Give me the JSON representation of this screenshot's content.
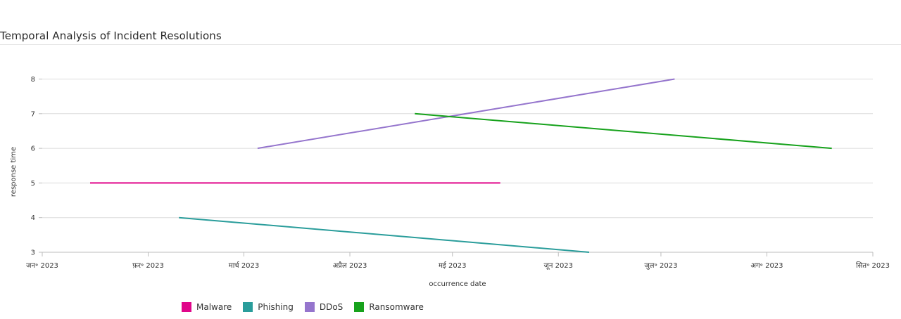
{
  "chart_data": {
    "type": "line",
    "title": "Temporal Analysis of Incident Resolutions",
    "xlabel": "occurrence date",
    "ylabel": "response time",
    "ylim": [
      3,
      8.7
    ],
    "xlim": [
      "2023-01-01",
      "2023-09-01"
    ],
    "y_ticks": [
      3,
      4,
      5,
      6,
      7,
      8
    ],
    "x_ticks": [
      {
        "date": "2023-01-01",
        "label": "जन॰ 2023"
      },
      {
        "date": "2023-02-01",
        "label": "फ़र॰ 2023"
      },
      {
        "date": "2023-03-01",
        "label": "मार्च 2023"
      },
      {
        "date": "2023-04-01",
        "label": "अप्रैल 2023"
      },
      {
        "date": "2023-05-01",
        "label": "मई 2023"
      },
      {
        "date": "2023-06-01",
        "label": "जून 2023"
      },
      {
        "date": "2023-07-01",
        "label": "जुल॰ 2023"
      },
      {
        "date": "2023-08-01",
        "label": "अग॰ 2023"
      },
      {
        "date": "2023-09-01",
        "label": "सित॰ 2023"
      }
    ],
    "grid": true,
    "legend_position": "bottom-left",
    "series": [
      {
        "name": "Malware",
        "color": "#e0068a",
        "points": [
          {
            "x": "2023-01-15",
            "y": 5
          },
          {
            "x": "2023-05-15",
            "y": 5
          }
        ]
      },
      {
        "name": "Phishing",
        "color": "#2a9d9b",
        "points": [
          {
            "x": "2023-02-10",
            "y": 4
          },
          {
            "x": "2023-06-10",
            "y": 3
          }
        ]
      },
      {
        "name": "DDoS",
        "color": "#9575cd",
        "points": [
          {
            "x": "2023-03-05",
            "y": 6
          },
          {
            "x": "2023-07-05",
            "y": 8
          }
        ]
      },
      {
        "name": "Ransomware",
        "color": "#17a21c",
        "points": [
          {
            "x": "2023-04-20",
            "y": 7
          },
          {
            "x": "2023-08-20",
            "y": 6
          }
        ]
      }
    ]
  }
}
